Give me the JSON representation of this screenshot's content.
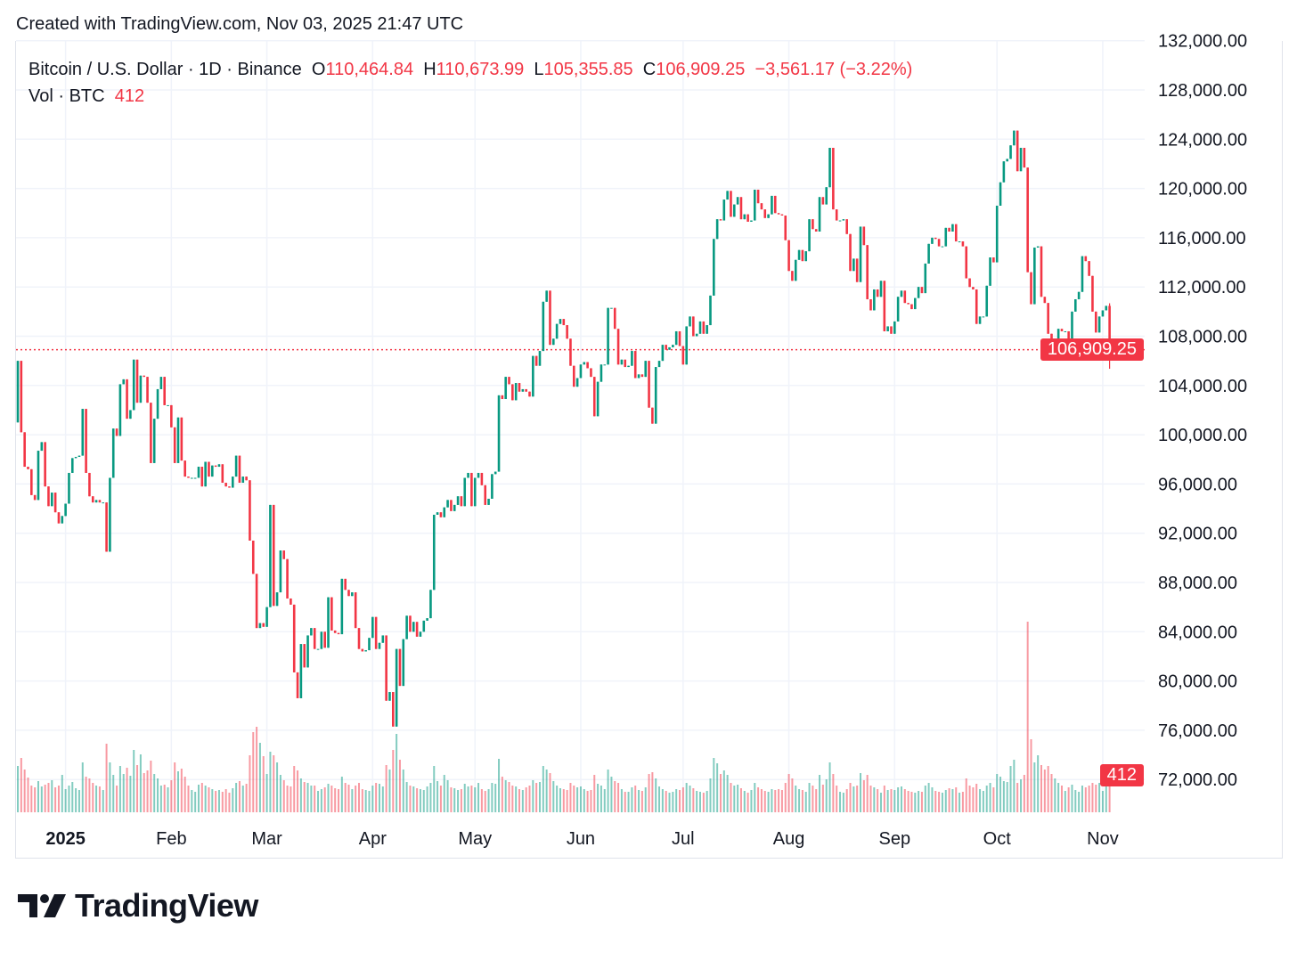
{
  "caption": "Created with TradingView.com, Nov 03, 2025 21:47 UTC",
  "legend": {
    "symbol": "Bitcoin / U.S. Dollar · 1D · Binance",
    "open_label": "O",
    "open": "110,464.84",
    "high_label": "H",
    "high": "110,673.99",
    "low_label": "L",
    "low": "105,355.85",
    "close_label": "C",
    "close": "106,909.25",
    "change": "−3,561.17 (−3.22%)",
    "vol_label": "Vol · BTC",
    "vol": "412"
  },
  "logo": "TradingView",
  "colors": {
    "up": "#089981",
    "down": "#f23645",
    "grid": "#f0f3fa",
    "text": "#131722"
  },
  "chart_data": {
    "type": "candlestick",
    "symbol": "BTCUSD",
    "interval": "1D",
    "start_date": "2024-12-18",
    "end_date": "2025-11-03",
    "ylim": [
      72000,
      132000
    ],
    "y_ticks": [
      "132,000.00",
      "128,000.00",
      "124,000.00",
      "120,000.00",
      "116,000.00",
      "112,000.00",
      "108,000.00",
      "104,000.00",
      "100,000.00",
      "96,000.00",
      "92,000.00",
      "88,000.00",
      "84,000.00",
      "80,000.00",
      "76,000.00",
      "72,000.00"
    ],
    "x_ticks": [
      {
        "label": "2025",
        "date": "2025-01-01",
        "bold": true
      },
      {
        "label": "Feb",
        "date": "2025-02-01"
      },
      {
        "label": "Mar",
        "date": "2025-03-01"
      },
      {
        "label": "Apr",
        "date": "2025-04-01"
      },
      {
        "label": "May",
        "date": "2025-05-01"
      },
      {
        "label": "Jun",
        "date": "2025-06-01"
      },
      {
        "label": "Jul",
        "date": "2025-07-01"
      },
      {
        "label": "Aug",
        "date": "2025-08-01"
      },
      {
        "label": "Sep",
        "date": "2025-09-01"
      },
      {
        "label": "Oct",
        "date": "2025-10-01"
      },
      {
        "label": "Nov",
        "date": "2025-11-01"
      }
    ],
    "grid": true,
    "first_open": 101000,
    "last_candle": {
      "open": 110464.84,
      "high": 110673.99,
      "low": 105355.85,
      "close": 106909.25
    },
    "last_price_label": "106,909.25",
    "last_volume_label": "412",
    "closes": [
      106000,
      100200,
      97400,
      97200,
      95100,
      94700,
      98700,
      99400,
      95800,
      94200,
      95300,
      93700,
      92800,
      93400,
      94400,
      96900,
      98100,
      98200,
      98300,
      102100,
      96900,
      95000,
      94500,
      94700,
      94500,
      94500,
      90500,
      96500,
      100500,
      99900,
      104100,
      104500,
      101300,
      102000,
      106100,
      102600,
      104800,
      104700,
      102600,
      97700,
      101300,
      103700,
      104700,
      102400,
      102400,
      100600,
      97700,
      101400,
      97900,
      96600,
      96500,
      96500,
      96500,
      97400,
      95800,
      97800,
      96600,
      97500,
      97400,
      97600,
      96100,
      95800,
      95700,
      96600,
      98300,
      96100,
      96600,
      96300,
      91400,
      88700,
      84300,
      84700,
      84400,
      86000,
      94300,
      86100,
      87200,
      90600,
      89900,
      86700,
      86200,
      80700,
      78600,
      83000,
      81100,
      83700,
      84300,
      82600,
      82600,
      84000,
      82700,
      86800,
      84100,
      83900,
      83800,
      88300,
      87400,
      86900,
      87200,
      84300,
      82600,
      82400,
      82500,
      83500,
      85200,
      82600,
      83100,
      83700,
      78400,
      79100,
      76300,
      82600,
      79600,
      83400,
      85300,
      84000,
      84800,
      83600,
      84000,
      84900,
      85100,
      87400,
      93500,
      93700,
      93300,
      94100,
      94700,
      93800,
      94300,
      95000,
      94200,
      96500,
      96900,
      94200,
      96500,
      96900,
      95900,
      94300,
      94800,
      96800,
      97000,
      103200,
      102900,
      104700,
      104100,
      102800,
      104200,
      103500,
      103700,
      103500,
      103100,
      106400,
      105600,
      106800,
      110800,
      111700,
      107300,
      107800,
      109000,
      109400,
      108900,
      107800,
      105600,
      103900,
      104600,
      105700,
      105900,
      105400,
      104700,
      101500,
      104300,
      105700,
      105700,
      110300,
      110300,
      108600,
      105700,
      106100,
      105500,
      105600,
      106800,
      104600,
      104900,
      104700,
      106000,
      102200,
      100900,
      105500,
      106000,
      107300,
      106900,
      107100,
      107300,
      108400,
      107200,
      105700,
      108800,
      109600,
      108000,
      108200,
      109200,
      108200,
      108900,
      111300,
      115900,
      117500,
      117400,
      119100,
      119800,
      117700,
      118700,
      119300,
      117500,
      117900,
      117300,
      117400,
      119900,
      118800,
      118300,
      117600,
      117900,
      119400,
      118000,
      117900,
      117800,
      115800,
      113300,
      112500,
      114200,
      115000,
      114100,
      114900,
      117500,
      116700,
      116500,
      119300,
      118700,
      120100,
      123300,
      118300,
      117400,
      117400,
      117500,
      116300,
      113300,
      114300,
      112400,
      116900,
      115400,
      111000,
      110100,
      111800,
      111200,
      112500,
      108400,
      108800,
      108200,
      109200,
      111200,
      111700,
      110700,
      110600,
      110200,
      111100,
      112000,
      111500,
      113900,
      115500,
      116000,
      115900,
      115300,
      115300,
      116800,
      116500,
      117100,
      115700,
      115700,
      115300,
      112700,
      112000,
      111800,
      109000,
      109600,
      109600,
      112100,
      114400,
      114000,
      118600,
      120500,
      122200,
      122400,
      123500,
      124700,
      121400,
      123300,
      121700,
      113200,
      110600,
      115200,
      115300,
      111200,
      110700,
      108200,
      106400,
      107200,
      108600,
      108400,
      108400,
      107600,
      110000,
      111000,
      111600,
      114500,
      114100,
      112900,
      110000,
      108300,
      109600,
      110100,
      110465,
      106909.25
    ],
    "volumes": [
      520,
      610,
      480,
      390,
      300,
      280,
      350,
      290,
      310,
      330,
      360,
      280,
      300,
      420,
      260,
      300,
      340,
      270,
      250,
      560,
      400,
      380,
      330,
      300,
      290,
      250,
      770,
      560,
      420,
      300,
      520,
      430,
      500,
      410,
      700,
      530,
      650,
      440,
      470,
      580,
      430,
      380,
      300,
      310,
      280,
      360,
      560,
      460,
      490,
      400,
      300,
      250,
      230,
      310,
      330,
      300,
      280,
      260,
      240,
      250,
      230,
      260,
      220,
      270,
      330,
      350,
      300,
      320,
      640,
      900,
      960,
      780,
      630,
      430,
      680,
      640,
      560,
      420,
      360,
      300,
      290,
      520,
      470,
      380,
      340,
      330,
      300,
      300,
      240,
      260,
      280,
      320,
      300,
      270,
      260,
      400,
      330,
      310,
      260,
      300,
      330,
      260,
      250,
      240,
      300,
      330,
      320,
      290,
      530,
      480,
      700,
      880,
      590,
      480,
      340,
      300,
      290,
      270,
      260,
      250,
      290,
      330,
      520,
      350,
      300,
      420,
      360,
      280,
      270,
      250,
      260,
      320,
      290,
      300,
      280,
      330,
      260,
      240,
      260,
      330,
      320,
      600,
      400,
      360,
      340,
      300,
      290,
      260,
      250,
      280,
      300,
      360,
      330,
      340,
      520,
      480,
      440,
      350,
      300,
      270,
      260,
      250,
      330,
      300,
      280,
      290,
      260,
      240,
      250,
      420,
      320,
      300,
      260,
      480,
      400,
      350,
      330,
      260,
      230,
      230,
      280,
      300,
      250,
      240,
      280,
      430,
      450,
      380,
      290,
      260,
      240,
      220,
      230,
      260,
      250,
      280,
      330,
      300,
      270,
      240,
      230,
      220,
      240,
      380,
      610,
      550,
      430,
      470,
      420,
      330,
      300,
      310,
      270,
      240,
      220,
      250,
      330,
      280,
      260,
      240,
      230,
      260,
      250,
      260,
      250,
      330,
      430,
      380,
      300,
      260,
      250,
      230,
      330,
      300,
      260,
      420,
      310,
      370,
      560,
      430,
      300,
      230,
      220,
      260,
      330,
      290,
      300,
      440,
      360,
      420,
      300,
      280,
      260,
      220,
      300,
      250,
      260,
      250,
      280,
      290,
      260,
      240,
      230,
      220,
      240,
      230,
      300,
      330,
      280,
      240,
      230,
      220,
      250,
      270,
      260,
      280,
      220,
      230,
      380,
      300,
      280,
      320,
      260,
      240,
      300,
      330,
      280,
      430,
      400,
      350,
      340,
      520,
      590,
      330,
      370,
      420,
      2140,
      820,
      560,
      640,
      530,
      480,
      520,
      430,
      380,
      330,
      300,
      240,
      280,
      310,
      250,
      230,
      300,
      280,
      300,
      330,
      310,
      330,
      240,
      300,
      412
    ]
  }
}
